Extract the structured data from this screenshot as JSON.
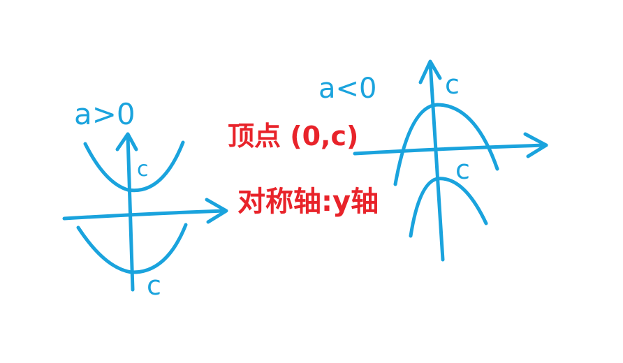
{
  "colors": {
    "diagram_stroke": "#1aa3dd",
    "annotation": "#e8232a",
    "background": "#ffffff"
  },
  "left_panel": {
    "condition_label": "a>0",
    "upper_parabola_vertex_label": "c",
    "lower_parabola_vertex_label": "c"
  },
  "right_panel": {
    "condition_label": "a<0",
    "axis_top_label": "c",
    "lower_parabola_vertex_label": "c"
  },
  "annotations": {
    "vertex_text": "顶点 (0,c)",
    "symmetry_axis_text": "对称轴:y轴"
  }
}
